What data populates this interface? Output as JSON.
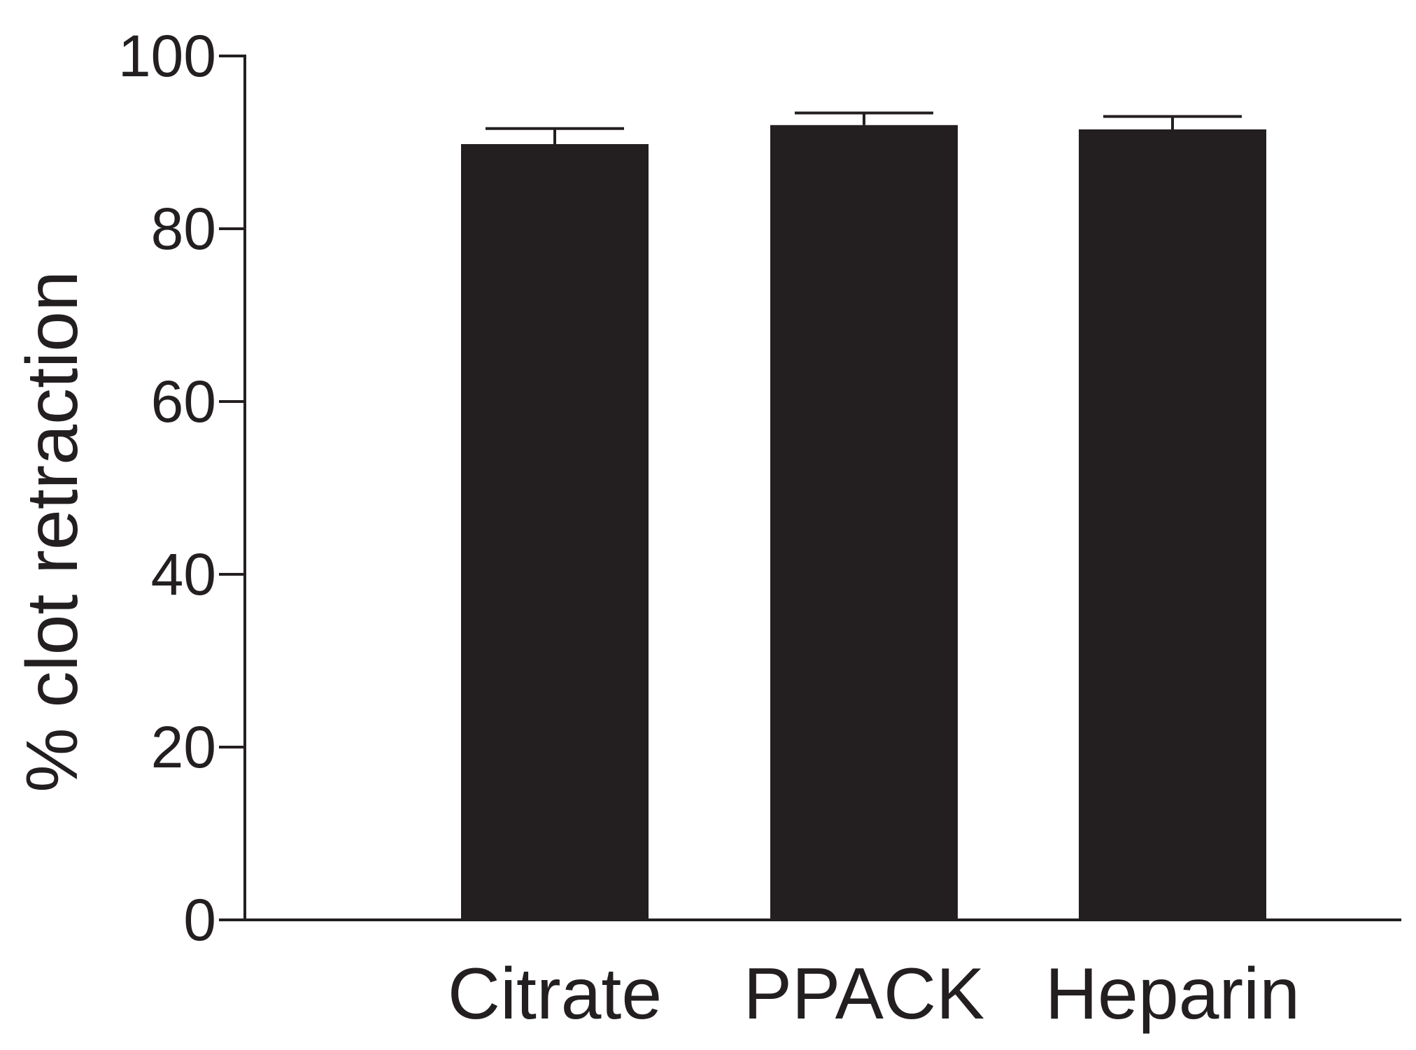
{
  "chart_data": {
    "type": "bar",
    "title": "",
    "xlabel": "",
    "ylabel": "% clot retraction",
    "categories": [
      "Citrate",
      "PPACK",
      "Heparin"
    ],
    "values": [
      89.8,
      92.0,
      91.5
    ],
    "errors": [
      1.8,
      1.4,
      1.5
    ],
    "ylim": [
      0,
      100
    ],
    "yticks": [
      0,
      20,
      40,
      60,
      80,
      100
    ],
    "ytick_labels": [
      "0",
      "20",
      "40",
      "60",
      "80",
      "100"
    ],
    "grid": false,
    "legend": "none",
    "bar_color": "#231f20",
    "axis_color": "#231f20"
  }
}
